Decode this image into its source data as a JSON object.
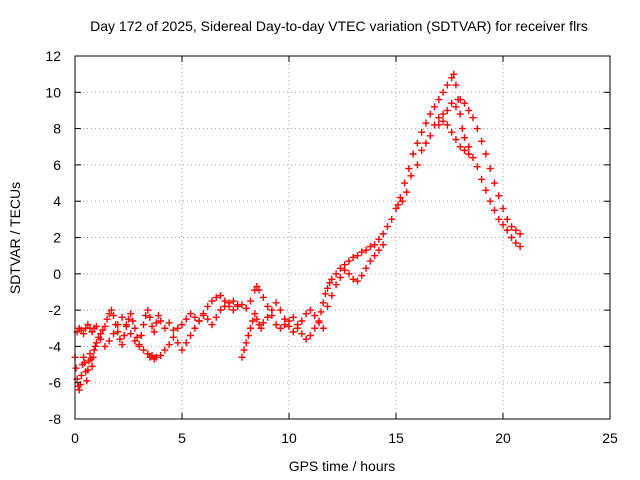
{
  "chart_data": {
    "type": "scatter",
    "title": "Day 172 of 2025, Sidereal Day-to-day VTEC variation (SDTVAR) for receiver flrs",
    "xlabel": "GPS time / hours",
    "ylabel": "SDTVAR / TECUs",
    "xlim": [
      0,
      25
    ],
    "ylim": [
      -8,
      12
    ],
    "xticks": [
      0,
      5,
      10,
      15,
      20,
      25
    ],
    "yticks": [
      -8,
      -6,
      -4,
      -2,
      0,
      2,
      4,
      6,
      8,
      10,
      12
    ],
    "xtick_labels": [
      "0",
      "5",
      "10",
      "15",
      "20",
      "25"
    ],
    "ytick_labels": [
      "-8",
      "-6",
      "-4",
      "-2",
      "0",
      "2",
      "4",
      "6",
      "8",
      "10",
      "12"
    ],
    "grid": true,
    "marker": "+",
    "series": [
      {
        "name": "SDTVAR",
        "color": "#ff0000",
        "points": [
          [
            0.0,
            -4.6
          ],
          [
            0.05,
            -5.2
          ],
          [
            0.1,
            -5.8
          ],
          [
            0.15,
            -6.2
          ],
          [
            0.2,
            -6.4
          ],
          [
            0.25,
            -6.1
          ],
          [
            0.3,
            -5.6
          ],
          [
            0.35,
            -5.0
          ],
          [
            0.4,
            -4.6
          ],
          [
            0.45,
            -4.9
          ],
          [
            0.5,
            -5.4
          ],
          [
            0.55,
            -5.9
          ],
          [
            0.6,
            -5.3
          ],
          [
            0.65,
            -4.8
          ],
          [
            0.7,
            -4.4
          ],
          [
            0.75,
            -4.7
          ],
          [
            0.8,
            -5.1
          ],
          [
            0.85,
            -4.6
          ],
          [
            0.9,
            -4.2
          ],
          [
            0.95,
            -4.0
          ],
          [
            1.0,
            -3.8
          ],
          [
            1.1,
            -3.5
          ],
          [
            1.2,
            -3.3
          ],
          [
            1.3,
            -3.1
          ],
          [
            1.4,
            -2.9
          ],
          [
            1.5,
            -2.5
          ],
          [
            1.6,
            -2.2
          ],
          [
            1.7,
            -2.0
          ],
          [
            1.8,
            -2.3
          ],
          [
            1.9,
            -2.8
          ],
          [
            2.0,
            -3.2
          ],
          [
            2.1,
            -3.6
          ],
          [
            2.2,
            -3.9
          ],
          [
            2.3,
            -3.4
          ],
          [
            2.4,
            -2.9
          ],
          [
            2.5,
            -2.5
          ],
          [
            2.6,
            -2.2
          ],
          [
            2.7,
            -2.6
          ],
          [
            2.8,
            -3.0
          ],
          [
            2.9,
            -3.5
          ],
          [
            3.0,
            -3.9
          ],
          [
            3.1,
            -3.4
          ],
          [
            3.2,
            -2.8
          ],
          [
            3.3,
            -2.3
          ],
          [
            3.4,
            -2.0
          ],
          [
            3.5,
            -2.4
          ],
          [
            3.6,
            -2.9
          ],
          [
            3.7,
            -3.2
          ],
          [
            3.8,
            -2.7
          ],
          [
            3.9,
            -2.3
          ],
          [
            4.0,
            -2.6
          ],
          [
            4.2,
            -3.0
          ],
          [
            4.4,
            -2.7
          ],
          [
            4.6,
            -3.1
          ],
          [
            4.8,
            -3.0
          ],
          [
            5.0,
            -2.8
          ],
          [
            5.2,
            -2.5
          ],
          [
            5.4,
            -2.2
          ],
          [
            5.6,
            -2.4
          ],
          [
            5.8,
            -2.6
          ],
          [
            6.0,
            -2.2
          ],
          [
            6.2,
            -1.8
          ],
          [
            6.4,
            -1.5
          ],
          [
            6.6,
            -1.3
          ],
          [
            6.8,
            -1.2
          ],
          [
            7.0,
            -1.5
          ],
          [
            7.2,
            -1.8
          ],
          [
            7.4,
            -2.0
          ],
          [
            7.6,
            -1.8
          ],
          [
            7.8,
            -1.7
          ],
          [
            8.0,
            -1.9
          ],
          [
            8.2,
            -1.5
          ],
          [
            8.4,
            -0.9
          ],
          [
            8.5,
            -0.7
          ],
          [
            8.6,
            -0.9
          ],
          [
            8.8,
            -1.3
          ],
          [
            9.0,
            -1.8
          ],
          [
            9.2,
            -2.3
          ],
          [
            9.4,
            -2.8
          ],
          [
            9.6,
            -3.0
          ],
          [
            9.8,
            -2.8
          ],
          [
            10.0,
            -2.6
          ],
          [
            10.2,
            -2.4
          ],
          [
            10.4,
            -2.8
          ],
          [
            10.6,
            -3.3
          ],
          [
            10.8,
            -3.6
          ],
          [
            11.0,
            -3.4
          ],
          [
            11.2,
            -3.0
          ],
          [
            11.4,
            -2.6
          ],
          [
            11.5,
            -2.1
          ],
          [
            11.6,
            -1.6
          ],
          [
            11.7,
            -1.1
          ],
          [
            11.8,
            -0.8
          ],
          [
            11.9,
            -0.5
          ],
          [
            12.0,
            -0.3
          ],
          [
            12.2,
            0.0
          ],
          [
            12.4,
            0.3
          ],
          [
            12.6,
            0.5
          ],
          [
            12.8,
            0.7
          ],
          [
            13.0,
            0.9
          ],
          [
            13.2,
            1.0
          ],
          [
            13.4,
            1.2
          ],
          [
            13.6,
            1.3
          ],
          [
            13.8,
            1.5
          ],
          [
            14.0,
            1.6
          ],
          [
            14.2,
            1.9
          ],
          [
            14.4,
            2.2
          ],
          [
            14.6,
            2.6
          ],
          [
            14.8,
            3.0
          ],
          [
            15.0,
            3.6
          ],
          [
            15.2,
            4.2
          ],
          [
            15.4,
            5.0
          ],
          [
            15.6,
            5.8
          ],
          [
            15.8,
            6.6
          ],
          [
            16.0,
            7.2
          ],
          [
            16.2,
            7.8
          ],
          [
            16.4,
            8.3
          ],
          [
            16.6,
            8.8
          ],
          [
            16.8,
            9.2
          ],
          [
            17.0,
            9.6
          ],
          [
            17.2,
            10.0
          ],
          [
            17.4,
            10.4
          ],
          [
            17.6,
            10.8
          ],
          [
            17.7,
            11.0
          ],
          [
            17.8,
            10.4
          ],
          [
            17.9,
            9.6
          ],
          [
            18.0,
            8.8
          ],
          [
            18.1,
            8.0
          ],
          [
            18.2,
            7.5
          ],
          [
            18.4,
            7.0
          ],
          [
            18.6,
            6.4
          ],
          [
            18.8,
            5.9
          ],
          [
            19.0,
            5.2
          ],
          [
            19.2,
            4.6
          ],
          [
            19.4,
            4.0
          ],
          [
            19.6,
            3.5
          ],
          [
            19.8,
            3.0
          ],
          [
            20.0,
            2.7
          ],
          [
            20.2,
            2.4
          ],
          [
            20.4,
            2.0
          ],
          [
            20.6,
            1.7
          ],
          [
            20.8,
            1.5
          ],
          [
            0.1,
            -3.2
          ],
          [
            0.2,
            -3.0
          ],
          [
            0.3,
            -3.1
          ],
          [
            0.4,
            -3.3
          ],
          [
            0.5,
            -3.0
          ],
          [
            0.6,
            -2.8
          ],
          [
            0.7,
            -3.0
          ],
          [
            0.8,
            -3.2
          ],
          [
            0.9,
            -3.0
          ],
          [
            1.0,
            -2.9
          ],
          [
            1.2,
            -3.6
          ],
          [
            1.4,
            -4.0
          ],
          [
            1.6,
            -3.7
          ],
          [
            1.8,
            -3.3
          ],
          [
            2.0,
            -2.8
          ],
          [
            2.2,
            -2.4
          ],
          [
            2.4,
            -2.8
          ],
          [
            2.6,
            -3.3
          ],
          [
            2.8,
            -3.7
          ],
          [
            3.0,
            -4.0
          ],
          [
            3.2,
            -4.2
          ],
          [
            3.4,
            -4.4
          ],
          [
            3.5,
            -4.6
          ],
          [
            3.6,
            -4.5
          ],
          [
            3.7,
            -4.7
          ],
          [
            3.8,
            -4.6
          ],
          [
            4.0,
            -4.5
          ],
          [
            4.2,
            -4.2
          ],
          [
            4.4,
            -3.9
          ],
          [
            4.6,
            -3.5
          ],
          [
            4.8,
            -3.8
          ],
          [
            5.0,
            -4.2
          ],
          [
            5.2,
            -3.8
          ],
          [
            5.4,
            -3.4
          ],
          [
            5.6,
            -3.0
          ],
          [
            5.8,
            -2.6
          ],
          [
            6.0,
            -2.3
          ],
          [
            6.2,
            -2.5
          ],
          [
            6.4,
            -2.8
          ],
          [
            6.6,
            -2.4
          ],
          [
            6.8,
            -2.0
          ],
          [
            7.0,
            -1.8
          ],
          [
            7.2,
            -1.6
          ],
          [
            7.4,
            -1.5
          ],
          [
            7.6,
            -1.7
          ],
          [
            7.8,
            -4.6
          ],
          [
            7.9,
            -4.2
          ],
          [
            8.0,
            -3.8
          ],
          [
            8.1,
            -3.4
          ],
          [
            8.2,
            -3.0
          ],
          [
            8.3,
            -2.6
          ],
          [
            8.4,
            -2.2
          ],
          [
            8.5,
            -2.5
          ],
          [
            8.6,
            -2.8
          ],
          [
            8.7,
            -3.0
          ],
          [
            8.8,
            -2.7
          ],
          [
            9.0,
            -2.4
          ],
          [
            9.2,
            -2.0
          ],
          [
            9.4,
            -1.6
          ],
          [
            9.6,
            -2.0
          ],
          [
            9.8,
            -2.5
          ],
          [
            10.0,
            -2.9
          ],
          [
            10.2,
            -3.2
          ],
          [
            10.4,
            -3.0
          ],
          [
            10.6,
            -2.6
          ],
          [
            10.8,
            -2.2
          ],
          [
            11.0,
            -2.0
          ],
          [
            11.2,
            -2.3
          ],
          [
            11.4,
            -2.7
          ],
          [
            11.6,
            -3.0
          ],
          [
            11.8,
            -1.8
          ],
          [
            12.0,
            -1.2
          ],
          [
            12.2,
            -0.6
          ],
          [
            12.4,
            -0.2
          ],
          [
            12.6,
            0.2
          ],
          [
            12.8,
            0.0
          ],
          [
            13.0,
            -0.3
          ],
          [
            13.2,
            -0.4
          ],
          [
            13.4,
            -0.1
          ],
          [
            13.6,
            0.3
          ],
          [
            13.8,
            0.7
          ],
          [
            14.0,
            1.0
          ],
          [
            14.2,
            1.3
          ],
          [
            14.4,
            1.6
          ],
          [
            15.1,
            3.8
          ],
          [
            15.3,
            4.0
          ],
          [
            15.5,
            4.5
          ],
          [
            15.7,
            5.4
          ],
          [
            16.0,
            6.0
          ],
          [
            16.2,
            6.8
          ],
          [
            16.4,
            7.2
          ],
          [
            16.6,
            7.6
          ],
          [
            16.8,
            8.2
          ],
          [
            17.0,
            8.6
          ],
          [
            17.2,
            8.8
          ],
          [
            17.4,
            9.0
          ],
          [
            17.6,
            9.4
          ],
          [
            17.8,
            9.2
          ],
          [
            18.0,
            9.6
          ],
          [
            18.2,
            9.4
          ],
          [
            18.4,
            9.0
          ],
          [
            18.6,
            8.6
          ],
          [
            18.8,
            8.0
          ],
          [
            19.0,
            7.3
          ],
          [
            19.2,
            6.6
          ],
          [
            19.4,
            5.8
          ],
          [
            19.6,
            5.0
          ],
          [
            19.8,
            4.3
          ],
          [
            20.0,
            3.6
          ],
          [
            20.2,
            3.0
          ],
          [
            20.4,
            2.6
          ],
          [
            20.6,
            2.4
          ],
          [
            20.8,
            2.2
          ],
          [
            17.0,
            8.2
          ],
          [
            17.2,
            8.4
          ],
          [
            17.4,
            8.2
          ],
          [
            17.6,
            7.8
          ],
          [
            17.8,
            7.4
          ],
          [
            18.0,
            7.0
          ],
          [
            18.2,
            6.8
          ],
          [
            18.4,
            6.6
          ]
        ]
      }
    ]
  }
}
